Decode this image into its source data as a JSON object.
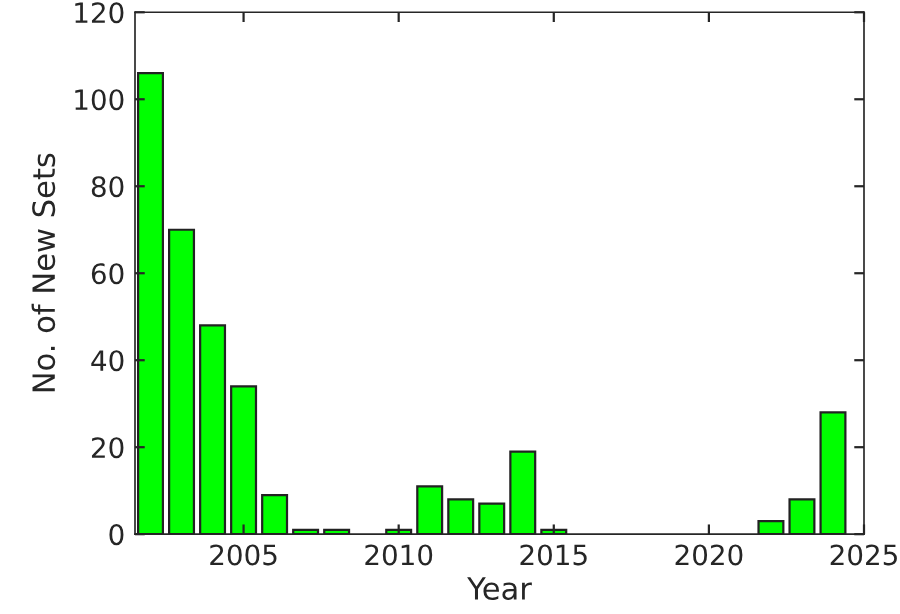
{
  "chart_data": {
    "type": "bar",
    "xlabel": "Year",
    "ylabel": "No. of New Sets",
    "x": [
      2002,
      2003,
      2004,
      2005,
      2006,
      2007,
      2008,
      2009,
      2010,
      2011,
      2012,
      2013,
      2014,
      2015,
      2016,
      2017,
      2018,
      2019,
      2020,
      2021,
      2022,
      2023,
      2024
    ],
    "values": [
      106,
      70,
      48,
      34,
      9,
      1,
      1,
      0,
      1,
      11,
      8,
      7,
      19,
      1,
      0,
      0,
      0,
      0,
      0,
      0,
      3,
      8,
      28
    ],
    "color": "#00ff00",
    "xlim": [
      2001.5,
      2025
    ],
    "xticks": [
      2005,
      2010,
      2015,
      2020,
      2025
    ],
    "ylim": [
      0,
      120
    ],
    "yticks": [
      0,
      20,
      40,
      60,
      80,
      100,
      120
    ],
    "grid": false
  }
}
